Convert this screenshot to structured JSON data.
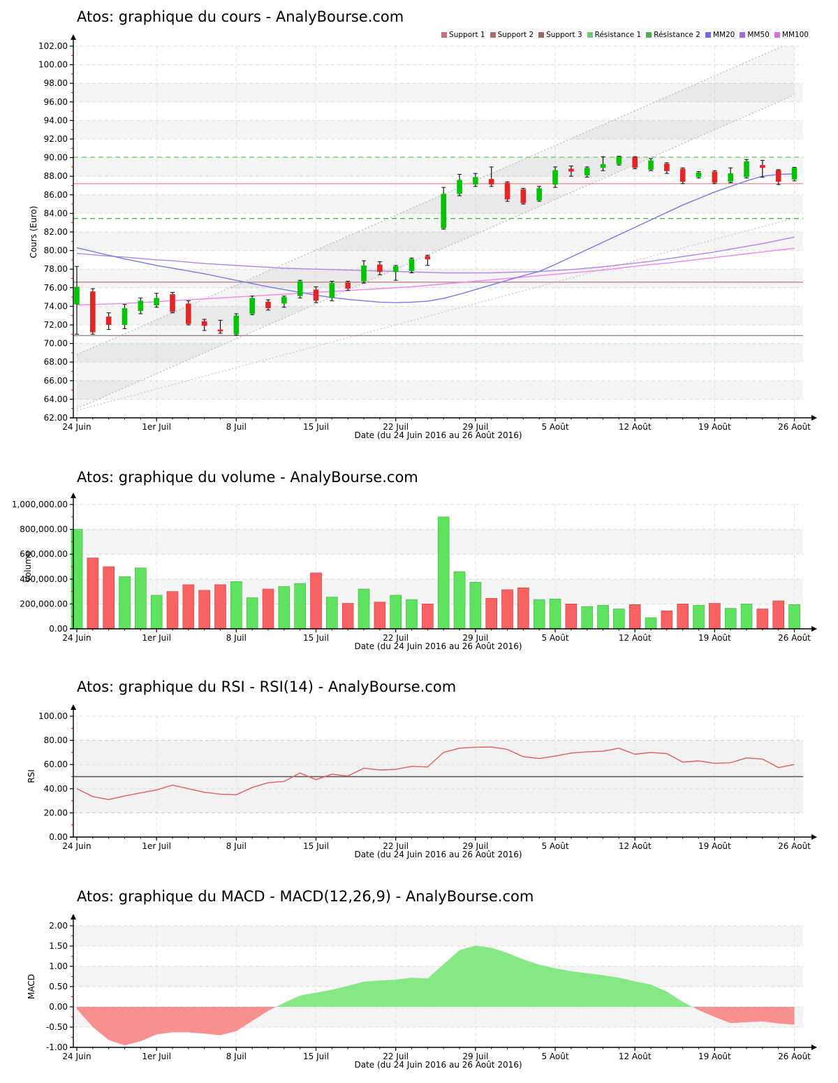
{
  "site": "AnalyBourse.com",
  "stock": "Atos",
  "legend": {
    "items": [
      {
        "label": "Support 1",
        "color": "#c96f6f"
      },
      {
        "label": "Support 2",
        "color": "#b36a6a"
      },
      {
        "label": "Support 3",
        "color": "#9c6666"
      },
      {
        "label": "Résistance 1",
        "color": "#6fc96f"
      },
      {
        "label": "Résistance 2",
        "color": "#4fae4f"
      },
      {
        "label": "MM20",
        "color": "#6a6ae0"
      },
      {
        "label": "MM50",
        "color": "#a36ae0"
      },
      {
        "label": "MM100",
        "color": "#e06ae0"
      }
    ]
  },
  "chart_data": [
    {
      "type": "candlestick",
      "title": "Atos: graphique du cours - AnalyBourse.com",
      "ylabel": "Cours (Euro)",
      "xlabel": "Date (du 24 Juin 2016 au 26 Août 2016)",
      "ylim": [
        62,
        102
      ],
      "ytick_step": 2,
      "ytick_labels": [
        "102.00",
        "100.00",
        "98.00",
        "96.00",
        "94.00",
        "92.00",
        "90.00",
        "88.00",
        "86.00",
        "84.00",
        "82.00",
        "80.00",
        "78.00",
        "76.00",
        "74.00",
        "72.00",
        "70.00",
        "68.00",
        "66.00",
        "64.00",
        "62.00"
      ],
      "x_tick_labels": [
        "24 Juin",
        "1er Juil",
        "8 Juil",
        "15 Juil",
        "22 Juil",
        "29 Juil",
        "5 Août",
        "12 Août",
        "19 Août",
        "26 Août"
      ],
      "candles_format": [
        "open",
        "high",
        "low",
        "close"
      ],
      "candles": [
        [
          74.2,
          78.3,
          71.0,
          76.1
        ],
        [
          75.6,
          75.9,
          71.0,
          71.2
        ],
        [
          72.9,
          73.3,
          71.5,
          72.0
        ],
        [
          72.0,
          74.2,
          71.6,
          73.8
        ],
        [
          73.5,
          74.9,
          73.2,
          74.6
        ],
        [
          74.1,
          75.4,
          73.9,
          74.9
        ],
        [
          75.3,
          75.5,
          73.3,
          73.4
        ],
        [
          74.3,
          74.6,
          72.0,
          72.1
        ],
        [
          72.4,
          72.6,
          71.4,
          71.9
        ],
        [
          71.5,
          72.5,
          71.1,
          71.3
        ],
        [
          71.0,
          73.2,
          70.9,
          73.0
        ],
        [
          73.2,
          75.1,
          73.1,
          74.9
        ],
        [
          74.5,
          74.7,
          73.6,
          73.8
        ],
        [
          74.3,
          75.1,
          73.9,
          75.0
        ],
        [
          75.1,
          76.8,
          74.9,
          76.7
        ],
        [
          75.8,
          76.1,
          74.4,
          74.6
        ],
        [
          74.9,
          76.7,
          74.6,
          76.5
        ],
        [
          76.55,
          76.7,
          75.7,
          75.9
        ],
        [
          76.7,
          78.9,
          76.5,
          78.4
        ],
        [
          78.5,
          78.8,
          77.4,
          77.7
        ],
        [
          77.7,
          78.4,
          76.8,
          78.3
        ],
        [
          77.8,
          79.2,
          77.6,
          79.1
        ],
        [
          79.4,
          79.5,
          78.4,
          79.05
        ],
        [
          82.4,
          86.8,
          82.3,
          86.1
        ],
        [
          86.1,
          88.2,
          85.9,
          87.6
        ],
        [
          87.1,
          88.3,
          86.9,
          87.9
        ],
        [
          87.7,
          89.0,
          86.9,
          87.1
        ],
        [
          87.3,
          87.4,
          85.3,
          85.5
        ],
        [
          86.6,
          86.7,
          85.0,
          85.1
        ],
        [
          85.4,
          86.9,
          85.3,
          86.7
        ],
        [
          87.1,
          89.0,
          86.8,
          88.65
        ],
        [
          88.8,
          89.1,
          88.0,
          88.5
        ],
        [
          88.1,
          89.0,
          87.9,
          88.9
        ],
        [
          88.9,
          90.1,
          88.6,
          89.3
        ],
        [
          89.3,
          90.15,
          89.2,
          90.1
        ],
        [
          90.05,
          90.1,
          88.8,
          88.9
        ],
        [
          88.7,
          89.9,
          88.6,
          89.7
        ],
        [
          89.35,
          89.45,
          88.3,
          88.55
        ],
        [
          88.8,
          88.9,
          87.2,
          87.4
        ],
        [
          87.9,
          88.5,
          87.8,
          88.4
        ],
        [
          88.5,
          88.6,
          87.2,
          87.3
        ],
        [
          87.4,
          88.9,
          87.3,
          88.3
        ],
        [
          87.9,
          89.8,
          87.8,
          89.6
        ],
        [
          89.2,
          89.7,
          87.9,
          88.9
        ],
        [
          88.65,
          88.7,
          87.1,
          87.4
        ],
        [
          87.65,
          88.95,
          87.5,
          88.9
        ]
      ],
      "up_color": "#00c300",
      "down_color": "#e42525",
      "overlays": {
        "mm20": [
          80.3,
          79.9,
          79.5,
          79.1,
          78.75,
          78.4,
          78.1,
          77.8,
          77.5,
          77.15,
          76.8,
          76.45,
          76.1,
          75.8,
          75.5,
          75.2,
          74.95,
          74.75,
          74.6,
          74.45,
          74.4,
          74.45,
          74.55,
          74.85,
          75.3,
          75.8,
          76.3,
          76.8,
          77.3,
          77.75,
          78.5,
          79.3,
          80.1,
          80.9,
          81.7,
          82.5,
          83.3,
          84.1,
          84.9,
          85.6,
          86.3,
          86.9,
          87.5,
          88.0,
          88.2,
          88.25
        ],
        "mm50": [
          79.7,
          79.55,
          79.4,
          79.3,
          79.15,
          79.0,
          78.9,
          78.75,
          78.6,
          78.5,
          78.4,
          78.3,
          78.2,
          78.1,
          78.05,
          78.0,
          77.95,
          77.9,
          77.85,
          77.8,
          77.75,
          77.7,
          77.65,
          77.6,
          77.6,
          77.6,
          77.6,
          77.65,
          77.7,
          77.75,
          77.85,
          77.95,
          78.1,
          78.25,
          78.45,
          78.65,
          78.85,
          79.1,
          79.35,
          79.6,
          79.85,
          80.15,
          80.45,
          80.75,
          81.1,
          81.45
        ],
        "mm100": [
          74.15,
          74.2,
          74.25,
          74.3,
          74.4,
          74.5,
          74.6,
          74.7,
          74.8,
          74.9,
          75.0,
          75.1,
          75.2,
          75.3,
          75.4,
          75.5,
          75.6,
          75.7,
          75.8,
          75.9,
          76.0,
          76.1,
          76.25,
          76.4,
          76.55,
          76.7,
          76.85,
          77.0,
          77.15,
          77.3,
          77.45,
          77.6,
          77.75,
          77.9,
          78.1,
          78.3,
          78.5,
          78.65,
          78.85,
          79.05,
          79.25,
          79.45,
          79.65,
          79.85,
          80.05,
          80.25
        ],
        "mm20_color": "#7878e6",
        "mm50_color": "#b183e8",
        "mm100_color": "#ef83ef",
        "hlines": [
          {
            "label": "Support 1",
            "y": 87.2,
            "color": "#e08a8a",
            "style": "solid"
          },
          {
            "label": "Support 2",
            "y": 76.6,
            "color": "#bc8484",
            "style": "solid"
          },
          {
            "label": "Support 3",
            "y": 70.85,
            "color": "#a08080",
            "style": "solid"
          },
          {
            "label": "Résistance 1",
            "y": 90.05,
            "color": "#77cc77",
            "style": "dashed"
          },
          {
            "label": "Résistance 2",
            "y": 83.45,
            "color": "#55b055",
            "style": "dashed"
          }
        ],
        "channel": {
          "lower_start": 63.0,
          "upper_start": 68.8,
          "slope_per_candle": 0.75,
          "color": "#bbbbbb"
        },
        "trendline": {
          "start": 62.8,
          "slope_per_candle": 0.46,
          "color": "#c4c4c4"
        }
      }
    },
    {
      "type": "bar",
      "title": "Atos: graphique du volume - AnalyBourse.com",
      "ylabel": "Volume",
      "xlabel": "Date (du 24 Juin 2016 au 26 Août 2016)",
      "ylim": [
        0,
        1000000
      ],
      "ytick_step": 200000,
      "ytick_labels": [
        "1,000,000.00",
        "800,000.00",
        "600,000.00",
        "400,000.00",
        "200,000.00",
        "0.00"
      ],
      "x_tick_labels": [
        "24 Juin",
        "1er Juil",
        "8 Juil",
        "15 Juil",
        "22 Juil",
        "29 Juil",
        "5 Août",
        "12 Août",
        "19 Août",
        "26 Août"
      ],
      "values": [
        800000,
        570000,
        500000,
        420000,
        490000,
        270000,
        300000,
        355000,
        310000,
        355000,
        380000,
        250000,
        320000,
        340000,
        365000,
        450000,
        255000,
        205000,
        320000,
        215000,
        270000,
        235000,
        200000,
        900000,
        460000,
        375000,
        245000,
        315000,
        330000,
        235000,
        240000,
        200000,
        180000,
        190000,
        160000,
        195000,
        90000,
        145000,
        200000,
        190000,
        205000,
        165000,
        200000,
        160000,
        225000,
        195000
      ],
      "up_color": "#5fe25f",
      "down_color": "#f96262"
    },
    {
      "type": "line",
      "title": "Atos: graphique du RSI - RSI(14) - AnalyBourse.com",
      "ylabel": "RSI",
      "xlabel": "Date (du 24 Juin 2016 au 26 Août 2016)",
      "ylim": [
        0,
        100
      ],
      "ytick_step": 20,
      "ytick_labels": [
        "100.00",
        "80.00",
        "60.00",
        "40.00",
        "20.00",
        "0.00"
      ],
      "x_tick_labels": [
        "24 Juin",
        "1er Juil",
        "8 Juil",
        "15 Juil",
        "22 Juil",
        "29 Juil",
        "5 Août",
        "12 Août",
        "19 Août",
        "26 Août"
      ],
      "values": [
        40,
        33.5,
        31,
        34,
        36.5,
        39,
        43,
        40,
        37,
        35.5,
        35,
        41,
        45,
        46,
        53,
        47.5,
        52,
        50.5,
        57,
        55.5,
        56,
        58.5,
        58,
        70,
        73.5,
        74.3,
        74.5,
        72.5,
        66.5,
        65,
        67,
        69.5,
        70.5,
        71,
        73.5,
        68.5,
        70,
        69,
        62,
        63,
        61,
        61.5,
        65.5,
        64.5,
        57.5,
        60
      ],
      "line_color": "#e05d5d",
      "hline": 50,
      "hline_color": "#555555",
      "band": [
        20,
        80
      ]
    },
    {
      "type": "area",
      "title": "Atos: graphique du MACD - MACD(12,26,9) - AnalyBourse.com",
      "ylabel": "MACD",
      "xlabel": "Date (du 24 Juin 2016 au 26 Août 2016)",
      "ylim": [
        -1,
        2
      ],
      "ytick_step": 0.5,
      "ytick_labels": [
        "2.00",
        "1.50",
        "1.00",
        "0.50",
        "0.00",
        "-0.50",
        "-1.00"
      ],
      "x_tick_labels": [
        "24 Juin",
        "1er Juil",
        "8 Juil",
        "15 Juil",
        "22 Juil",
        "29 Juil",
        "5 Août",
        "12 Août",
        "19 Août",
        "26 Août"
      ],
      "values": [
        -0.05,
        -0.5,
        -0.82,
        -0.95,
        -0.85,
        -0.68,
        -0.63,
        -0.63,
        -0.66,
        -0.7,
        -0.6,
        -0.35,
        -0.1,
        0.1,
        0.28,
        0.35,
        0.42,
        0.52,
        0.62,
        0.65,
        0.67,
        0.72,
        0.7,
        1.05,
        1.4,
        1.51,
        1.46,
        1.33,
        1.17,
        1.04,
        0.95,
        0.88,
        0.83,
        0.78,
        0.72,
        0.63,
        0.55,
        0.38,
        0.12,
        -0.08,
        -0.25,
        -0.4,
        -0.38,
        -0.36,
        -0.41,
        -0.44
      ],
      "pos_color": "#85e885",
      "neg_color": "#f89090"
    }
  ]
}
